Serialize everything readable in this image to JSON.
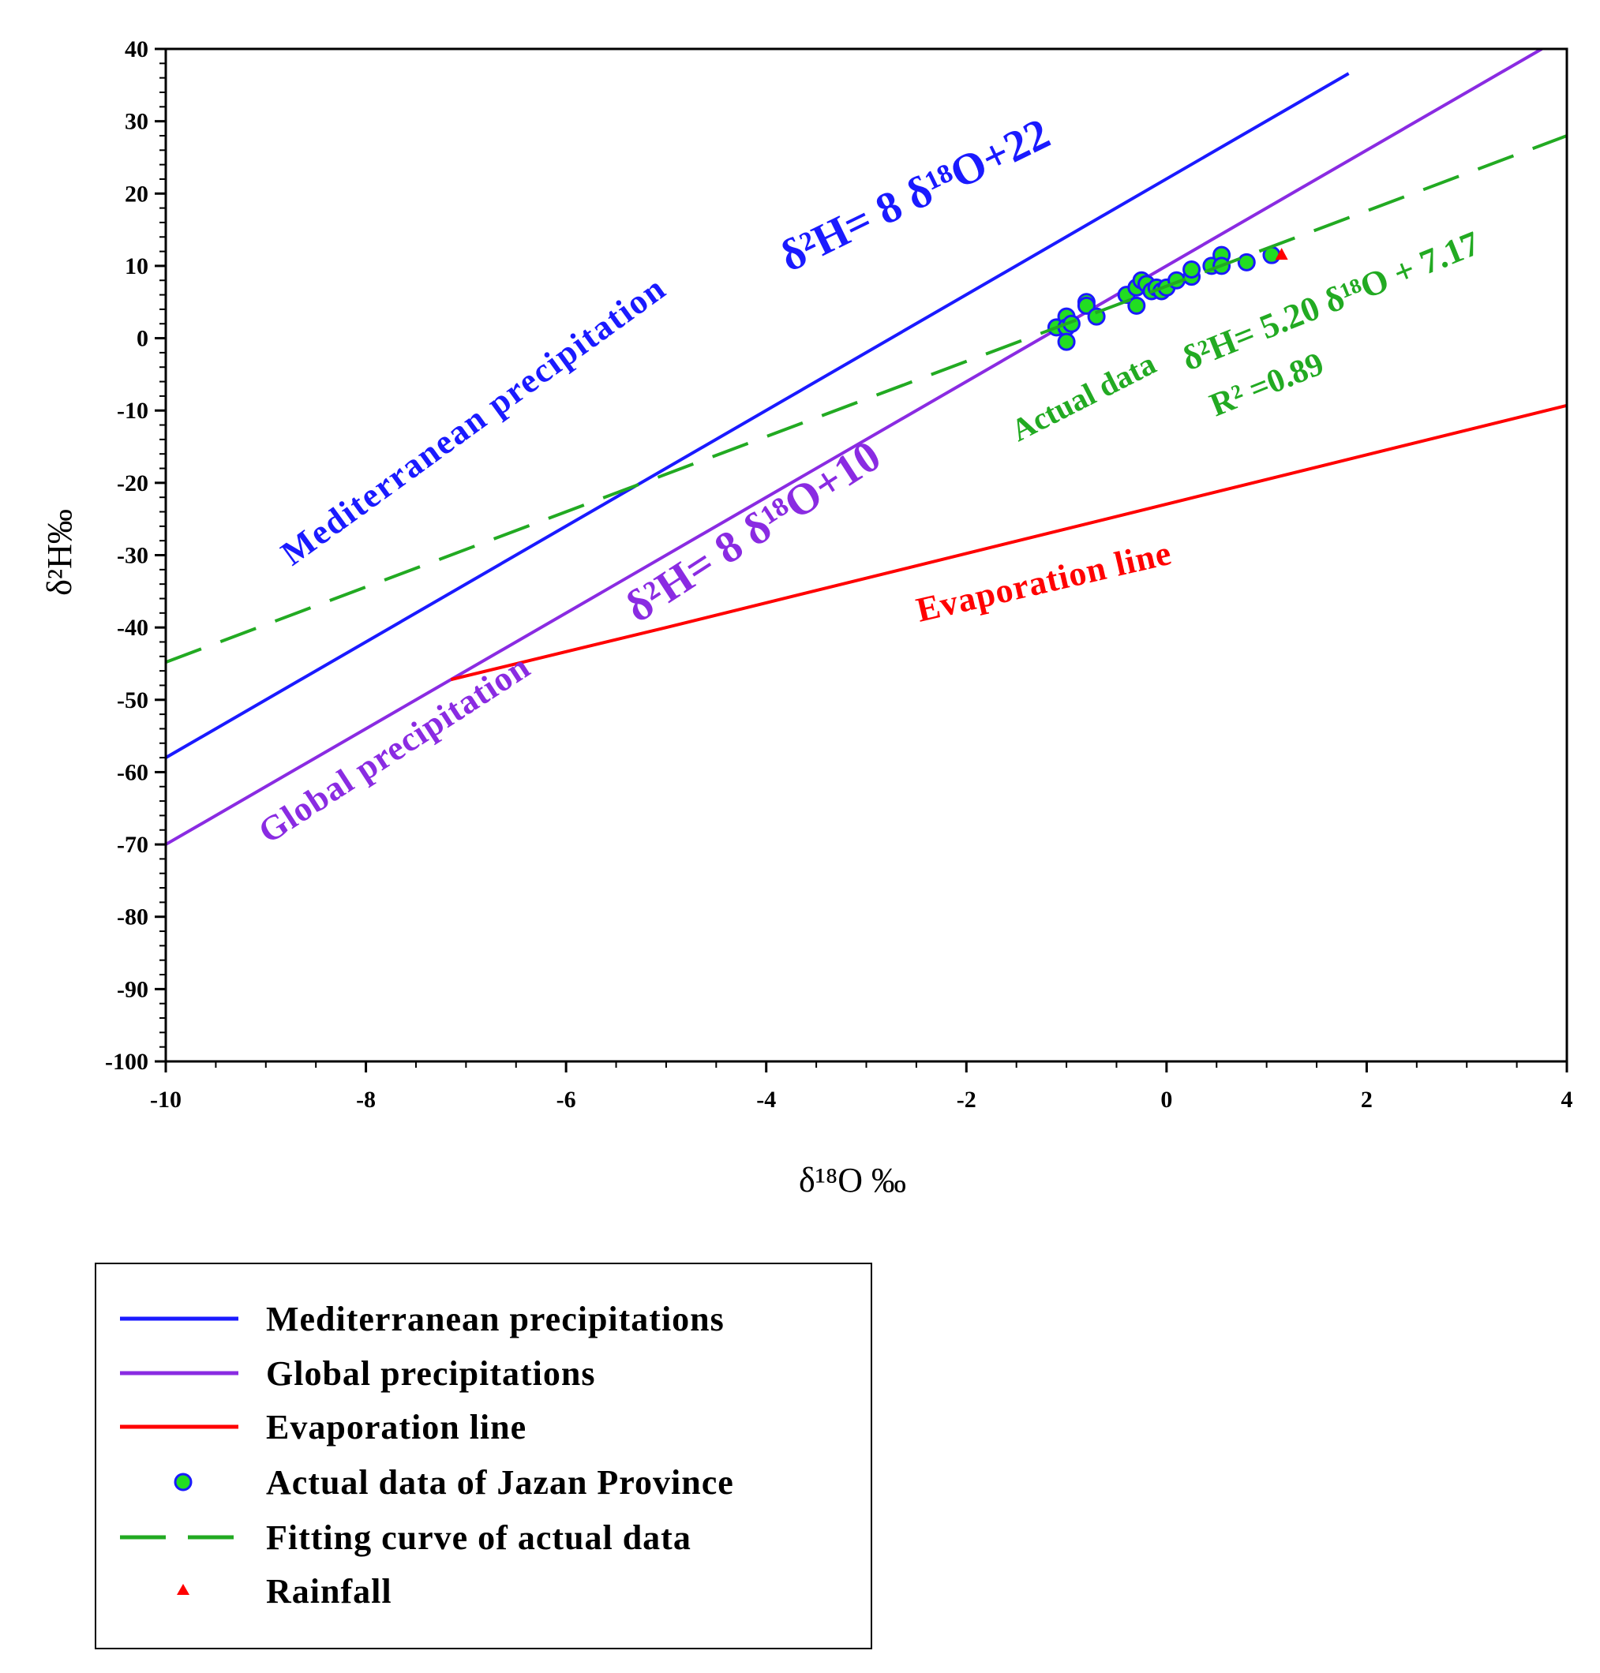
{
  "chart_data": {
    "type": "scatter",
    "xlabel": "δ¹⁸O ‰",
    "ylabel": "δ²H‰",
    "xlim": [
      -10,
      4
    ],
    "ylim": [
      -100,
      40
    ],
    "x_ticks": [
      "-10",
      "-8",
      "-6",
      "-4",
      "-2",
      "0",
      "2",
      "4"
    ],
    "y_ticks": [
      "40",
      "30",
      "20",
      "10",
      "0",
      "-10",
      "-20",
      "-30",
      "-40",
      "-50",
      "-60",
      "-70",
      "-80",
      "-90",
      "-100"
    ],
    "series": [
      {
        "name": "Mediterranean precipitations",
        "kind": "line",
        "color": "#1a1aff",
        "x": [
          -10,
          1.82
        ],
        "y": [
          -58,
          36.6
        ]
      },
      {
        "name": "Global precipitations",
        "kind": "line",
        "color": "#8a2be2",
        "x": [
          -10,
          3.75
        ],
        "y": [
          -70,
          40
        ]
      },
      {
        "name": "Evaporation line",
        "kind": "line",
        "color": "#ff0000",
        "x": [
          -7.15,
          -5,
          4
        ],
        "y": [
          -47.2,
          -40,
          -9.3
        ]
      },
      {
        "name": "Actual data of Jazan Province",
        "kind": "scatter",
        "color": "#22dd22",
        "edge": "#1a1aff",
        "x": [
          -1.1,
          -1.0,
          -1.0,
          -1.0,
          -0.95,
          -0.8,
          -0.8,
          -0.7,
          -0.4,
          -0.3,
          -0.3,
          -0.25,
          -0.2,
          -0.15,
          -0.1,
          -0.05,
          0.0,
          0.1,
          0.25,
          0.25,
          0.45,
          0.55,
          0.55,
          0.8,
          1.05
        ],
        "y": [
          1.5,
          3.0,
          1.5,
          -0.5,
          2.0,
          5.0,
          4.5,
          3.0,
          6.0,
          4.5,
          7.0,
          8.0,
          7.5,
          6.5,
          7.0,
          6.5,
          7.0,
          8.0,
          8.5,
          9.5,
          10.0,
          11.5,
          10.0,
          10.5,
          11.5
        ]
      },
      {
        "name": "Fitting curve of actual data",
        "kind": "line",
        "dash": true,
        "color": "#22aa22",
        "x": [
          -10,
          4
        ],
        "y": [
          -44.8,
          28
        ]
      },
      {
        "name": "Rainfall",
        "kind": "marker",
        "color": "#ff0000",
        "x": [
          1.15
        ],
        "y": [
          11.5
        ]
      }
    ],
    "annotations": {
      "med_label": "Mediterranean precipitation",
      "med_eq": "δ²H= 8 δ¹⁸O+22",
      "global_label": "Global precipitation",
      "global_eq": "δ²H= 8 δ¹⁸O+10",
      "evap_label": "Evaporation line",
      "actual_label": "Actual data",
      "fit_eq": "δ²H= 5.20 δ¹⁸O + 7.17",
      "r2": "R² =0.89"
    },
    "legend": {
      "placement": "below plot",
      "entries": [
        "Mediterranean precipitations",
        "Global precipitations",
        "Evaporation line",
        "Actual data of Jazan Province",
        "Fitting curve of actual data",
        "Rainfall"
      ]
    }
  }
}
